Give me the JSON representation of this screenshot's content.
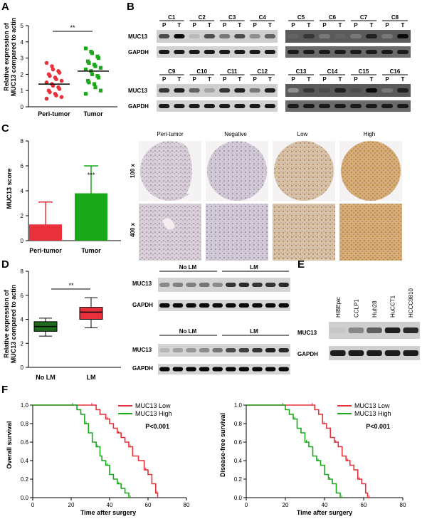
{
  "panels": {
    "a": "A",
    "b": "B",
    "c": "C",
    "d": "D",
    "e": "E",
    "f": "F"
  },
  "panel_a": {
    "ylabel_line1": "Relative expression of",
    "ylabel_line2": "MUC13 compared to actin",
    "yticks": [
      "0",
      "1",
      "2",
      "3",
      "4",
      "5"
    ],
    "groups": [
      "Peri-tumor",
      "Tumor"
    ],
    "significance": "**"
  },
  "panel_b": {
    "top_left_cases": [
      "C1",
      "C2",
      "C3",
      "C4"
    ],
    "top_right_cases": [
      "C5",
      "C6",
      "C7",
      "C8"
    ],
    "bot_left_cases": [
      "C9",
      "C10",
      "C11",
      "C12"
    ],
    "bot_right_cases": [
      "C13",
      "C14",
      "C15",
      "C16"
    ],
    "p": "P",
    "t": "T",
    "muc13": "MUC13",
    "gapdh": "GAPDH"
  },
  "panel_c": {
    "ylabel": "MUC13 score",
    "yticks": [
      "0",
      "2",
      "4",
      "6",
      "8"
    ],
    "groups": [
      "Peri-tumor",
      "Tumor"
    ],
    "significance": "***",
    "ihc_columns": [
      "Peri-tumor",
      "Negative",
      "Low",
      "High"
    ],
    "ihc_rows": [
      "100 x",
      "400 x"
    ]
  },
  "panel_d": {
    "ylabel_line1": "Relative expression of",
    "ylabel_line2": "MUC13 compared to actin",
    "yticks": [
      "0",
      "2",
      "4",
      "6",
      "8"
    ],
    "groups": [
      "No LM",
      "LM"
    ],
    "significance": "**",
    "blot_groups": [
      "No LM",
      "LM"
    ],
    "muc13": "MUC13",
    "gapdh": "GAPDH"
  },
  "panel_e": {
    "cell_lines": [
      "HIBEpic",
      "CCLP1",
      "Huh28",
      "HuCCT1",
      "HCCC9810"
    ],
    "muc13": "MUC13",
    "gapdh": "GAPDH"
  },
  "panel_f": {
    "left_ylabel": "Overall survival",
    "right_ylabel": "Disease-free survival",
    "xlabel": "Time after surgery",
    "xticks": [
      "0",
      "20",
      "40",
      "60",
      "80"
    ],
    "yticks": [
      "0.0",
      "0.2",
      "0.4",
      "0.6",
      "0.8",
      "1.0"
    ],
    "legend_low": "MUC13 Low",
    "legend_high": "MUC13 High",
    "pvalue": "P<0.001"
  },
  "colors": {
    "red": "#e8313a",
    "green": "#1aa81a",
    "dkgreen": "#1e6b1e"
  },
  "chart_data": [
    {
      "type": "scatter",
      "title": "A",
      "xlabel": "",
      "ylabel": "Relative expression of MUC13 compared to actin",
      "ylim": [
        0,
        5
      ],
      "categories": [
        "Peri-tumor",
        "Tumor"
      ],
      "series": [
        {
          "name": "Peri-tumor",
          "mean": 1.4,
          "values": [
            2.7,
            2.5,
            2.3,
            2.2,
            2.1,
            2.0,
            1.9,
            1.8,
            1.7,
            1.6,
            1.5,
            1.4,
            1.3,
            1.2,
            1.1,
            1.0,
            0.9,
            0.8,
            0.7,
            0.6,
            0.5
          ]
        },
        {
          "name": "Tumor",
          "mean": 2.2,
          "values": [
            3.6,
            3.4,
            3.3,
            3.1,
            3.0,
            2.8,
            2.7,
            2.6,
            2.5,
            2.4,
            2.3,
            2.2,
            2.0,
            1.9,
            1.8,
            1.6,
            1.5,
            1.4,
            1.2,
            1.0,
            0.8
          ]
        }
      ]
    },
    {
      "type": "bar",
      "title": "C",
      "ylabel": "MUC13 score",
      "ylim": [
        0,
        8
      ],
      "categories": [
        "Peri-tumor",
        "Tumor"
      ],
      "values": [
        1.3,
        3.8
      ],
      "errors": [
        1.8,
        2.2
      ]
    },
    {
      "type": "box",
      "title": "D",
      "ylabel": "Relative expression of MUC13 compared to actin",
      "ylim": [
        0,
        8
      ],
      "categories": [
        "No LM",
        "LM"
      ],
      "boxes": [
        {
          "min": 2.6,
          "q1": 3.0,
          "median": 3.4,
          "q3": 3.8,
          "max": 4.1
        },
        {
          "min": 3.3,
          "q1": 4.0,
          "median": 4.6,
          "q3": 5.0,
          "max": 5.8
        }
      ]
    },
    {
      "type": "line",
      "title": "F-left",
      "xlabel": "Time after surgery",
      "ylabel": "Overall survival",
      "xlim": [
        0,
        80
      ],
      "ylim": [
        0,
        1
      ],
      "series": [
        {
          "name": "MUC13 Low",
          "x": [
            0,
            30,
            33,
            35,
            38,
            40,
            42,
            44,
            46,
            48,
            50,
            52,
            55,
            58,
            60,
            62,
            64,
            65
          ],
          "y": [
            1.0,
            1.0,
            0.95,
            0.9,
            0.85,
            0.8,
            0.75,
            0.7,
            0.65,
            0.6,
            0.55,
            0.45,
            0.4,
            0.3,
            0.25,
            0.15,
            0.05,
            0.0
          ]
        },
        {
          "name": "MUC13 High",
          "x": [
            0,
            20,
            23,
            25,
            27,
            29,
            31,
            33,
            35,
            36,
            38,
            40,
            42,
            44,
            46,
            48,
            50
          ],
          "y": [
            1.0,
            1.0,
            0.95,
            0.9,
            0.8,
            0.7,
            0.6,
            0.55,
            0.45,
            0.4,
            0.35,
            0.25,
            0.2,
            0.15,
            0.1,
            0.05,
            0.0
          ]
        }
      ]
    },
    {
      "type": "line",
      "title": "F-right",
      "xlabel": "Time after surgery",
      "ylabel": "Disease-free survival",
      "xlim": [
        0,
        80
      ],
      "ylim": [
        0,
        1
      ],
      "series": [
        {
          "name": "MUC13 Low",
          "x": [
            0,
            33,
            35,
            37,
            39,
            41,
            43,
            45,
            47,
            49,
            51,
            53,
            55,
            57,
            59,
            61,
            62
          ],
          "y": [
            1.0,
            1.0,
            0.95,
            0.9,
            0.8,
            0.75,
            0.65,
            0.6,
            0.55,
            0.45,
            0.4,
            0.35,
            0.3,
            0.2,
            0.15,
            0.05,
            0.0
          ]
        },
        {
          "name": "MUC13 High",
          "x": [
            0,
            18,
            20,
            22,
            24,
            26,
            28,
            30,
            32,
            34,
            36,
            38,
            40,
            42,
            44,
            46,
            48
          ],
          "y": [
            1.0,
            1.0,
            0.95,
            0.9,
            0.85,
            0.75,
            0.7,
            0.6,
            0.55,
            0.45,
            0.4,
            0.35,
            0.25,
            0.2,
            0.15,
            0.05,
            0.0
          ]
        }
      ]
    }
  ]
}
